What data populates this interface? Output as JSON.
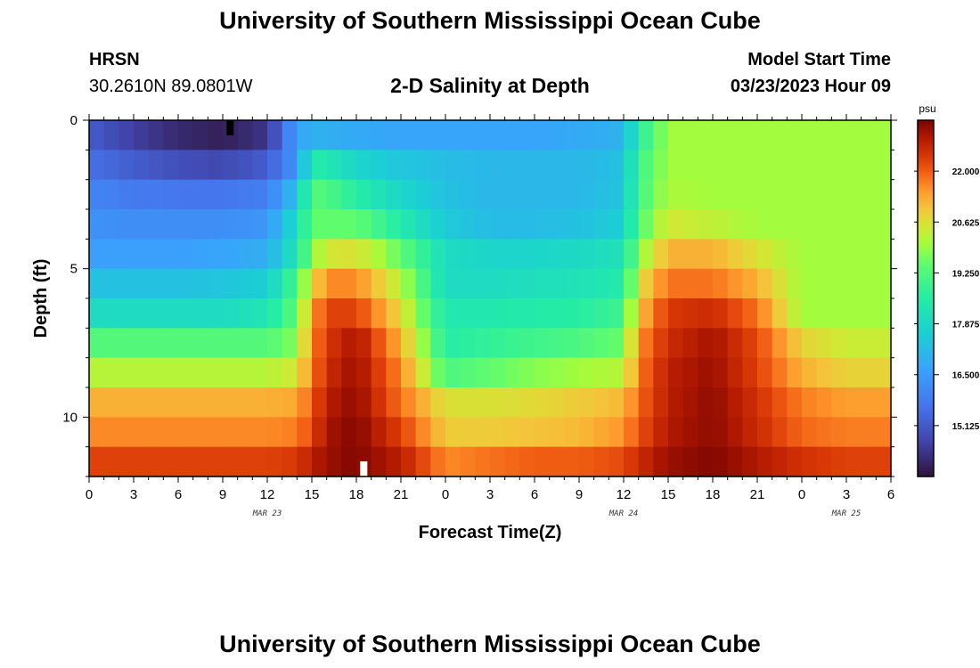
{
  "header": {
    "title": "University of Southern Mississippi Ocean Cube",
    "station": "HRSN",
    "coords": "30.2610N  89.0801W",
    "subtitle": "2-D Salinity at Depth",
    "model_start_label": "Model Start Time",
    "model_start_value": "03/23/2023 Hour 09"
  },
  "footer": {
    "title": "University of Southern Mississippi Ocean Cube"
  },
  "chart_data": {
    "type": "heatmap",
    "title": "2-D Salinity at Depth",
    "xlabel": "Forecast Time(Z)",
    "ylabel": "Depth (ft)",
    "x_range_hours": [
      0,
      54
    ],
    "y_range_ft": [
      0,
      12
    ],
    "x_tick_labels": [
      "0",
      "3",
      "6",
      "9",
      "12",
      "15",
      "18",
      "21",
      "0",
      "3",
      "6",
      "9",
      "12",
      "15",
      "18",
      "21",
      "0",
      "3",
      "6"
    ],
    "x_tick_hours": [
      0,
      3,
      6,
      9,
      12,
      15,
      18,
      21,
      24,
      27,
      30,
      33,
      36,
      39,
      42,
      45,
      48,
      51,
      54
    ],
    "y_ticks": [
      0,
      5,
      10
    ],
    "date_labels": [
      {
        "label": "MAR 23",
        "hour": 12
      },
      {
        "label": "MAR 24",
        "hour": 36
      },
      {
        "label": "MAR 25",
        "hour": 51
      }
    ],
    "colorbar": {
      "unit": "psu",
      "min": 13.75,
      "max": 23.375,
      "ticks": [
        "22.000",
        "20.625",
        "19.250",
        "17.875",
        "16.500",
        "15.125"
      ],
      "tick_values": [
        22.0,
        20.625,
        19.25,
        17.875,
        16.5,
        15.125
      ]
    },
    "depth_levels_ft": [
      0.5,
      1.5,
      2.5,
      3.5,
      4.5,
      5.5,
      6.5,
      7.5,
      8.5,
      9.5,
      10.5,
      11.5
    ],
    "time_hours": [
      0,
      3,
      6,
      9,
      12,
      14,
      15,
      16,
      18,
      21,
      24,
      27,
      30,
      33,
      36,
      37,
      39,
      42,
      45,
      48,
      51,
      54
    ],
    "salinity_psu": [
      [
        15.2,
        14.6,
        14.2,
        14.0,
        14.4,
        16.6,
        17.0,
        16.9,
        16.8,
        16.7,
        16.7,
        16.7,
        16.7,
        16.8,
        17.0,
        18.6,
        20.0,
        20.0,
        20.0,
        20.0,
        20.0,
        20.0
      ],
      [
        15.6,
        15.2,
        14.9,
        14.8,
        15.2,
        16.4,
        18.5,
        18.4,
        17.8,
        17.4,
        17.2,
        17.1,
        17.1,
        17.1,
        17.3,
        19.0,
        20.0,
        20.0,
        20.0,
        20.0,
        20.0,
        20.0
      ],
      [
        16.0,
        15.8,
        15.7,
        15.7,
        15.9,
        17.3,
        19.4,
        19.2,
        18.6,
        17.8,
        17.3,
        17.1,
        17.1,
        17.1,
        17.4,
        19.1,
        20.1,
        20.0,
        20.0,
        20.0,
        20.0,
        20.0
      ],
      [
        16.3,
        16.2,
        16.2,
        16.2,
        16.4,
        18.0,
        19.5,
        19.5,
        19.5,
        18.5,
        17.5,
        17.2,
        17.2,
        17.3,
        17.6,
        19.3,
        20.5,
        20.3,
        20.0,
        20.0,
        20.0,
        20.0
      ],
      [
        16.6,
        16.6,
        16.6,
        16.7,
        16.9,
        18.3,
        19.8,
        20.5,
        20.6,
        19.5,
        18.0,
        17.8,
        17.8,
        17.9,
        18.2,
        19.8,
        21.2,
        21.2,
        20.6,
        20.0,
        20.0,
        20.0
      ],
      [
        17.3,
        17.3,
        17.3,
        17.4,
        17.6,
        19.2,
        20.6,
        21.6,
        21.6,
        20.2,
        18.0,
        18.0,
        18.1,
        18.2,
        18.5,
        20.6,
        21.8,
        21.8,
        21.2,
        20.0,
        20.0,
        20.0
      ],
      [
        18.0,
        18.0,
        18.0,
        18.0,
        18.3,
        19.5,
        21.3,
        22.3,
        22.3,
        20.7,
        18.4,
        18.4,
        18.5,
        18.6,
        19.0,
        21.0,
        22.4,
        22.6,
        21.8,
        20.0,
        20.0,
        20.0
      ],
      [
        19.3,
        19.3,
        19.3,
        19.3,
        19.3,
        19.8,
        21.6,
        22.4,
        23.0,
        21.2,
        18.6,
        18.8,
        19.0,
        19.2,
        19.6,
        21.5,
        22.6,
        23.0,
        22.2,
        20.8,
        20.4,
        20.4
      ],
      [
        20.2,
        20.2,
        20.2,
        20.2,
        20.2,
        20.5,
        21.7,
        22.6,
        23.1,
        21.6,
        19.2,
        19.5,
        19.8,
        20.0,
        20.2,
        21.7,
        22.8,
        23.1,
        22.3,
        21.2,
        20.8,
        20.8
      ],
      [
        21.2,
        21.2,
        21.2,
        21.2,
        21.2,
        21.3,
        22.0,
        22.8,
        23.2,
        21.8,
        20.6,
        20.6,
        20.7,
        20.9,
        21.1,
        21.9,
        22.8,
        23.2,
        22.5,
        21.7,
        21.4,
        21.4
      ],
      [
        21.6,
        21.6,
        21.6,
        21.6,
        21.6,
        21.7,
        22.2,
        23.0,
        23.3,
        22.3,
        20.9,
        20.9,
        21.0,
        21.1,
        21.5,
        22.1,
        22.9,
        23.2,
        22.6,
        21.9,
        21.7,
        21.7
      ],
      [
        22.3,
        22.3,
        22.3,
        22.3,
        22.3,
        22.4,
        22.8,
        23.1,
        23.3,
        22.8,
        21.6,
        21.8,
        22.0,
        22.0,
        22.2,
        22.6,
        23.1,
        23.3,
        22.9,
        22.5,
        22.3,
        22.3
      ]
    ],
    "markers": [
      {
        "hour": 9.5,
        "depth_ft": 0.0,
        "color": "#000000"
      },
      {
        "hour": 18.5,
        "depth_ft": 12.0,
        "color": "#ffffff"
      }
    ]
  }
}
